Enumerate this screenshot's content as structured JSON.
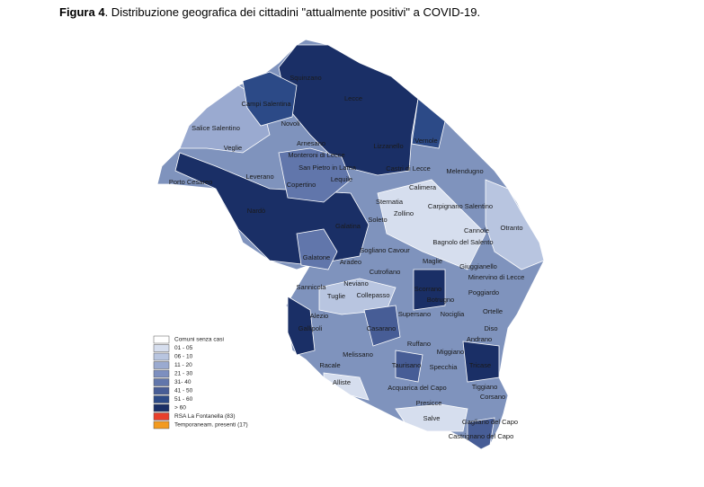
{
  "caption": {
    "label": "Figura 4",
    "text": ". Distribuzione  geografica dei cittadini \"attualmente positivi\" a COVID-19."
  },
  "places": [
    "Squinzano",
    "Lecce",
    "Campi Salentina",
    "Novoli",
    "Salice Salentino",
    "Vernole",
    "Arnesano",
    "Veglie",
    "Monteroni di Lecce",
    "Lizzanello",
    "San Pietro in Lama",
    "Castri di Lecce",
    "Melendugno",
    "Leverano",
    "Porto Cesareo",
    "Lequile",
    "Copertino",
    "Calimera",
    "Sternatia",
    "Carpignano Salentino",
    "Nardò",
    "Zollino",
    "Soleto",
    "Galatina",
    "Otranto",
    "Cannole",
    "Sogliano Cavour",
    "Bagnolo del Salento",
    "Galatone",
    "Aradeo",
    "Maglie",
    "Giuggianello",
    "Cutrofiano",
    "Minervino di Lecce",
    "Sannicola",
    "Neviano",
    "Tuglie",
    "Collepasso",
    "Scorrano",
    "Poggiardo",
    "Botrugno",
    "Alezio",
    "Supersano",
    "Nociglia",
    "Ortelle",
    "Gallipoli",
    "Casarano",
    "Diso",
    "Ruffano",
    "Andrano",
    "Miggiano",
    "Melissano",
    "Taurisano",
    "Specchia",
    "Tricase",
    "Racale",
    "Alliste",
    "Acquarica del Capo",
    "Tiggiano",
    "Corsano",
    "Presicce",
    "Salve",
    "Gagliano del Capo",
    "Castrignano del Capo"
  ],
  "legend": [
    {
      "label": "Comuni senza casi",
      "color": "#ffffff"
    },
    {
      "label": "01 - 05",
      "color": "#d6deee"
    },
    {
      "label": "06 - 10",
      "color": "#b8c5e0"
    },
    {
      "label": "11 - 20",
      "color": "#9aaad0"
    },
    {
      "label": "21 - 30",
      "color": "#7d8fbf"
    },
    {
      "label": "31- 40",
      "color": "#6176ab"
    },
    {
      "label": "41 - 50",
      "color": "#475d96"
    },
    {
      "label": "51 - 60",
      "color": "#2c4a87"
    },
    {
      "label": "> 60",
      "color": "#1a2f66"
    },
    {
      "label": "RSA La Fontanella (83)",
      "color": "#e8402c"
    },
    {
      "label": "Temporaneam. presenti (17)",
      "color": "#f39a1e"
    }
  ]
}
